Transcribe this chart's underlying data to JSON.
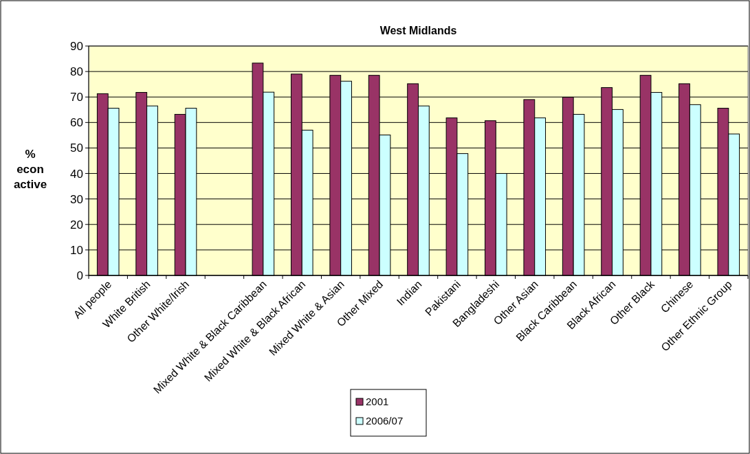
{
  "chart_data": {
    "type": "bar",
    "title": "West Midlands",
    "ylabel": "% econ active",
    "categories": [
      "All people",
      "White British",
      "Other White/Irish",
      null,
      "Mixed White & Black Caribbean",
      "Mixed White & Black African",
      "Mixed White & Asian",
      "Other Mixed",
      "Indian",
      "Pakistani",
      "Bangladeshi",
      "Other Asian",
      "Black Caribbean",
      "Black African",
      "Other Black",
      "Chinese",
      "Other Ethnic Group"
    ],
    "series": [
      {
        "name": "2001",
        "color": "#993366",
        "values": [
          71.3,
          71.8,
          63.2,
          null,
          83.3,
          79.0,
          78.5,
          78.5,
          75.2,
          61.8,
          60.7,
          69.0,
          69.9,
          73.7,
          78.5,
          75.2,
          65.6
        ]
      },
      {
        "name": "2006/07",
        "color": "#ccffff",
        "values": [
          65.6,
          66.5,
          65.6,
          null,
          71.9,
          57.0,
          76.2,
          55.1,
          66.5,
          47.8,
          40.0,
          61.8,
          63.2,
          65.1,
          71.8,
          67.0,
          55.5
        ]
      }
    ],
    "ylim": [
      0,
      90
    ],
    "yticks": [
      0,
      10,
      20,
      30,
      40,
      50,
      60,
      70,
      80,
      90
    ],
    "grid": "y",
    "legend": "bottom"
  }
}
